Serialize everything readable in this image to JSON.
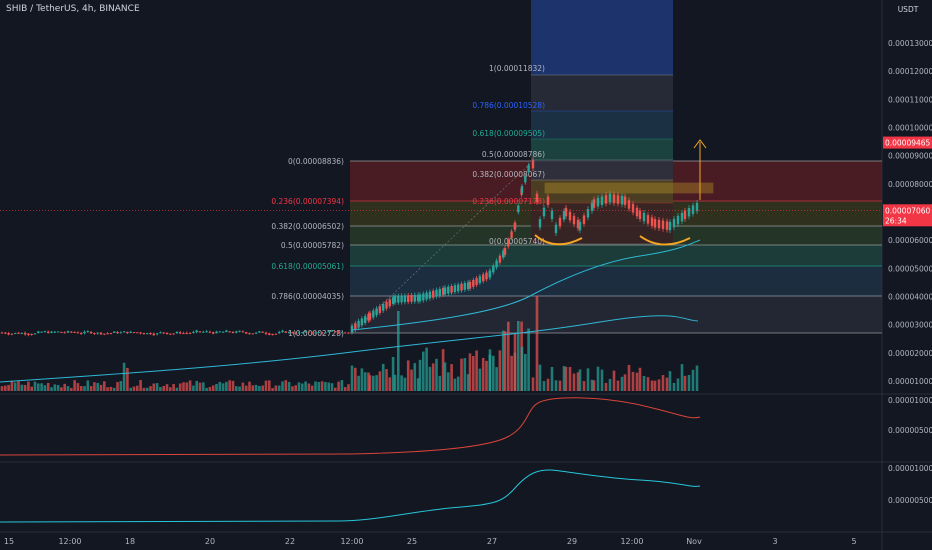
{
  "header": {
    "title": "SHIB / TetherUS, 4h, BINANCE"
  },
  "price_axis": {
    "currency": "USDT",
    "ticks": [
      "0.00013000",
      "0.00012000",
      "0.00011000",
      "0.00010000",
      "0.00009000",
      "0.00008000",
      "0.00007000",
      "0.00006000",
      "0.00005000",
      "0.00004000",
      "0.00003000",
      "0.00002000",
      "0.00001000"
    ],
    "last_price": "0.00007060",
    "countdown": "26:34",
    "target_price": "0.00009465"
  },
  "time_axis": {
    "labels": [
      "15",
      "12:00",
      "18",
      "20",
      "22",
      "12:00",
      "25",
      "27",
      "29",
      "12:00",
      "Nov",
      "3",
      "5"
    ]
  },
  "fib_left": {
    "levels": [
      {
        "label": "0(0.00008836)",
        "color": "#b2b5be"
      },
      {
        "label": "0.236(0.00007394)",
        "color": "#f23645"
      },
      {
        "label": "0.382(0.00006502)",
        "color": "#b2b5be"
      },
      {
        "label": "0.5(0.00005782)",
        "color": "#b2b5be"
      },
      {
        "label": "0.618(0.00005061)",
        "color": "#22ab94"
      },
      {
        "label": "0.786(0.00004035)",
        "color": "#b2b5be"
      },
      {
        "label": "1(0.00002728)",
        "color": "#b2b5be"
      }
    ]
  },
  "fib_right": {
    "levels": [
      {
        "label": "1(0.00011832)",
        "color": "#b2b5be"
      },
      {
        "label": "0.786(0.00010528)",
        "color": "#2962ff"
      },
      {
        "label": "0.618(0.00009505)",
        "color": "#22ab94"
      },
      {
        "label": "0.5(0.00008786)",
        "color": "#b2b5be"
      },
      {
        "label": "0.382(0.00008067)",
        "color": "#b2b5be"
      },
      {
        "label": "0.236(0.00007178)",
        "color": "#f23645"
      },
      {
        "label": "0(0.00005740)",
        "color": "#b2b5be"
      }
    ]
  },
  "osc1_axis": {
    "ticks": [
      "0.00001000",
      "0.00000500"
    ]
  },
  "osc2_axis": {
    "ticks": [
      "0.00001000",
      "0.00000500"
    ]
  },
  "colors": {
    "up": "#26a69a",
    "down": "#ef5350",
    "ma": "#2eb8d6",
    "osc1": "#d9443a",
    "osc2": "#26c6da",
    "arrow": "#f5a623"
  },
  "chart_data": {
    "type": "candlestick",
    "symbol": "SHIB / TetherUS",
    "interval": "4h",
    "ohlc_segments": [
      {
        "from": "Oct 15",
        "to": "Oct 22",
        "approx_range": [
          2.65e-05,
          2.9e-05
        ]
      },
      {
        "from": "Oct 24",
        "to": "Oct 28",
        "approx_range": [
          2.9e-05,
          8.8e-05
        ]
      },
      {
        "from": "Oct 28",
        "to": "Nov 1",
        "approx_range": [
          5.75e-05,
          8e-05
        ]
      }
    ],
    "last_close": 7.06e-05,
    "ylim": [
      2.5e-05,
      0.00014
    ]
  }
}
